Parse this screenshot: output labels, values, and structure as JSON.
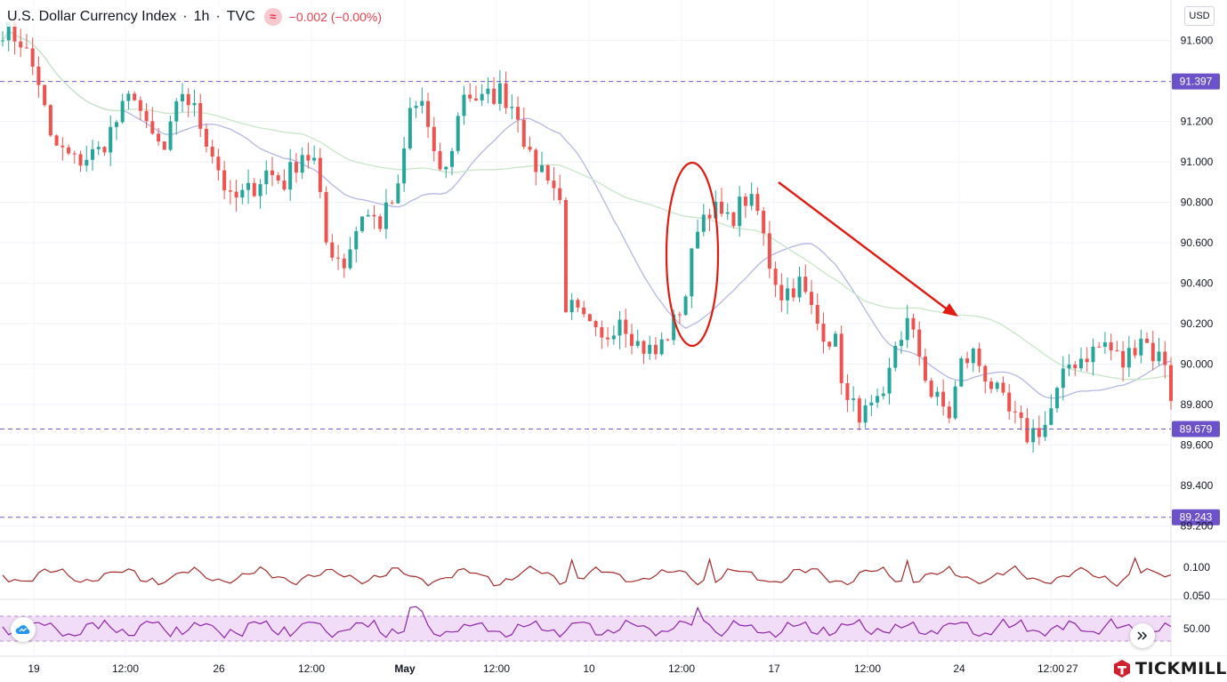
{
  "header": {
    "title": "U.S. Dollar Currency Index",
    "interval": "1h",
    "source": "TVC",
    "change": "−0.002 (−0.00%)",
    "currency_button": "USD"
  },
  "brand": {
    "name": "TICKMILL"
  },
  "colors": {
    "up": "#26a69a",
    "down": "#ef5350",
    "level_line": "#6a5ec9",
    "level_badge": "#6b52c8",
    "ma_fast": "#b3b7e8",
    "ma_slow": "#c9e6c8",
    "osc1": "#a52a2a",
    "rsi": "#8e24aa",
    "rsi_band": "#f1ddf7",
    "annotation": "#e21b10"
  },
  "chart_data": {
    "type": "candlestick",
    "title": "U.S. Dollar Currency Index · 1h · TVC",
    "y_axis": {
      "ticks": [
        "91.600",
        "91.200",
        "91.000",
        "90.800",
        "90.600",
        "90.400",
        "90.200",
        "90.000",
        "89.800",
        "89.600",
        "89.400",
        "89.200"
      ],
      "ylim": [
        89.2,
        91.65
      ]
    },
    "x_axis": {
      "ticks": [
        "19",
        "12:00",
        "26",
        "12:00",
        "May",
        "12:00",
        "10",
        "12:00",
        "17",
        "12:00",
        "24",
        "12:00",
        "27"
      ]
    },
    "levels": [
      {
        "label": "91.397",
        "value": 91.397
      },
      {
        "label": "89.679",
        "value": 89.679
      },
      {
        "label": "89.243",
        "value": 89.243
      }
    ],
    "price_path": [
      [
        0,
        91.66
      ],
      [
        3,
        91.6
      ],
      [
        6,
        91.4
      ],
      [
        8,
        91.1
      ],
      [
        12,
        91.0
      ],
      [
        16,
        91.05
      ],
      [
        20,
        91.25
      ],
      [
        22,
        91.35
      ],
      [
        24,
        91.15
      ],
      [
        27,
        91.05
      ],
      [
        30,
        91.35
      ],
      [
        32,
        91.25
      ],
      [
        35,
        91.05
      ],
      [
        38,
        90.8
      ],
      [
        41,
        90.85
      ],
      [
        44,
        90.95
      ],
      [
        47,
        90.9
      ],
      [
        50,
        91.05
      ],
      [
        52,
        91.0
      ],
      [
        54,
        90.6
      ],
      [
        57,
        90.5
      ],
      [
        60,
        90.75
      ],
      [
        63,
        90.7
      ],
      [
        66,
        90.85
      ],
      [
        68,
        91.25
      ],
      [
        70,
        91.3
      ],
      [
        72,
        91.0
      ],
      [
        74,
        90.95
      ],
      [
        77,
        91.35
      ],
      [
        80,
        91.3
      ],
      [
        83,
        91.35
      ],
      [
        86,
        91.25
      ],
      [
        88,
        91.0
      ],
      [
        91,
        90.95
      ],
      [
        93,
        90.8
      ],
      [
        94,
        90.3
      ],
      [
        97,
        90.2
      ],
      [
        100,
        90.1
      ],
      [
        103,
        90.25
      ],
      [
        106,
        90.1
      ],
      [
        109,
        90.05
      ],
      [
        112,
        90.2
      ],
      [
        114,
        90.35
      ],
      [
        116,
        90.7
      ],
      [
        118,
        90.78
      ],
      [
        121,
        90.7
      ],
      [
        124,
        90.82
      ],
      [
        126,
        90.75
      ],
      [
        128,
        90.5
      ],
      [
        130,
        90.35
      ],
      [
        133,
        90.4
      ],
      [
        136,
        90.2
      ],
      [
        139,
        90.1
      ],
      [
        141,
        89.8
      ],
      [
        144,
        89.75
      ],
      [
        147,
        89.8
      ],
      [
        149,
        90.1
      ],
      [
        151,
        90.2
      ],
      [
        153,
        90.05
      ],
      [
        155,
        89.85
      ],
      [
        158,
        89.75
      ],
      [
        160,
        90.0
      ],
      [
        162,
        90.05
      ],
      [
        165,
        89.9
      ],
      [
        168,
        89.75
      ],
      [
        171,
        89.65
      ],
      [
        174,
        89.7
      ],
      [
        176,
        89.85
      ],
      [
        178,
        90.0
      ],
      [
        181,
        90.05
      ],
      [
        184,
        90.1
      ],
      [
        187,
        90.0
      ],
      [
        190,
        90.15
      ],
      [
        192,
        90.05
      ],
      [
        194,
        90.02
      ],
      [
        195,
        89.85
      ]
    ],
    "series": [
      {
        "name": "Moving average (fast)"
      },
      {
        "name": "Moving average (slow)"
      }
    ],
    "indicators": [
      {
        "ticks": [
          "0.100",
          "0.050"
        ]
      },
      {
        "ticks": [
          "50.00"
        ]
      }
    ],
    "annotations": [
      {
        "type": "ellipse",
        "color": "red"
      },
      {
        "type": "arrow",
        "direction": "down-right",
        "color": "red"
      }
    ]
  }
}
